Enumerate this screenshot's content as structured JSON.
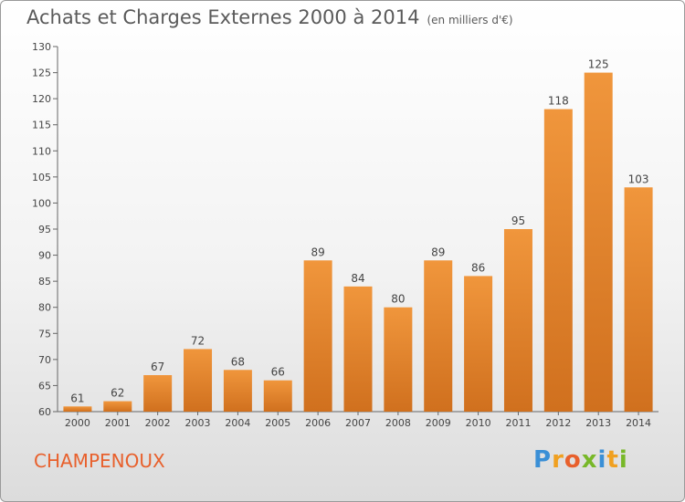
{
  "header": {
    "title": "Achats et Charges Externes 2000 à 2014",
    "subtitle": "(en milliers d'€)"
  },
  "footer": {
    "commune": "CHAMPENOUX",
    "logo_letters": [
      "P",
      "r",
      "o",
      "x",
      "i",
      "t",
      "i"
    ],
    "logo_colors": [
      "#3a8fd6",
      "#f0a020",
      "#e8602c",
      "#78b829",
      "#3a8fd6",
      "#f0a020",
      "#78b829"
    ]
  },
  "chart_data": {
    "type": "bar",
    "title": "Achats et Charges Externes 2000 à 2014",
    "subtitle": "(en milliers d'€)",
    "categories": [
      "2000",
      "2001",
      "2002",
      "2003",
      "2004",
      "2005",
      "2006",
      "2007",
      "2008",
      "2009",
      "2010",
      "2011",
      "2012",
      "2013",
      "2014"
    ],
    "values": [
      61,
      62,
      67,
      72,
      68,
      66,
      89,
      84,
      80,
      89,
      86,
      95,
      118,
      125,
      103
    ],
    "ylim": [
      60,
      130
    ],
    "yticks": [
      60,
      65,
      70,
      75,
      80,
      85,
      90,
      95,
      100,
      105,
      110,
      115,
      120,
      125,
      130
    ],
    "grid": false,
    "bar_color": "#f0963c",
    "bar_color_dark": "#d0701e"
  }
}
